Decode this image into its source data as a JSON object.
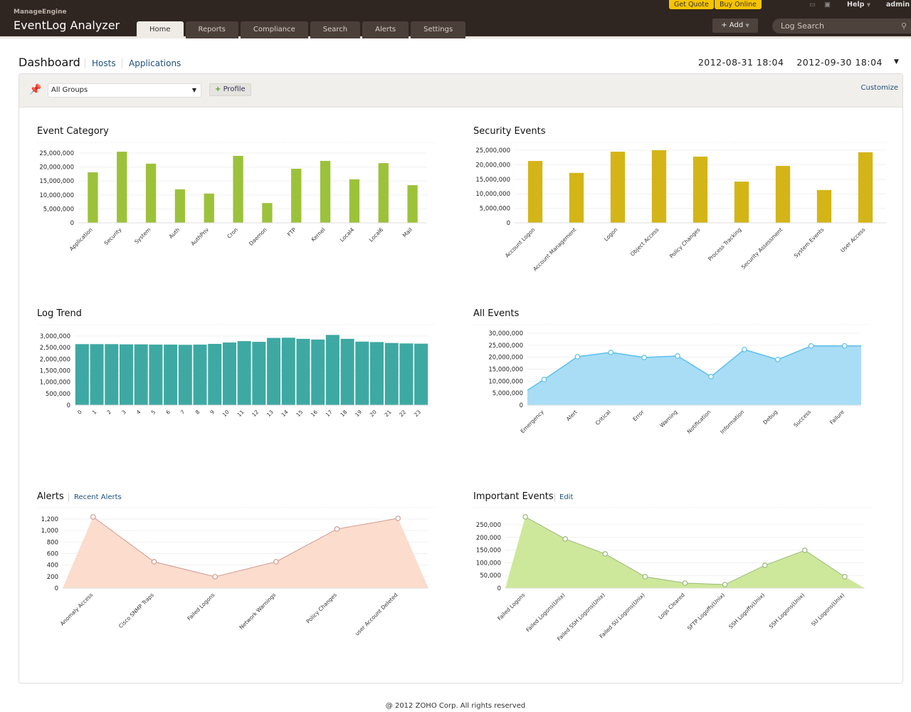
{
  "header": {
    "brand_small": "ManageEngine",
    "brand_product": "EventLog Analyzer",
    "tabs": [
      "Home",
      "Reports",
      "Compliance",
      "Search",
      "Alerts",
      "Settings"
    ],
    "active_tab": "Home",
    "get_quote": "Get Quote",
    "buy_online": "Buy Online",
    "help": "Help",
    "user": "admin",
    "add": "+ Add",
    "log_search": "Log Search"
  },
  "page": {
    "title": "Dashboard",
    "links": [
      "Hosts",
      "Applications"
    ],
    "date_from": "2012-08-31 18:04",
    "date_to": "2012-09-30 18:04"
  },
  "toolbar": {
    "group": "All Groups",
    "profile": "Profile",
    "customize": "Customize"
  },
  "alerts_link": "Recent Alerts",
  "important_link": "Edit",
  "footer": "@ 2012 ZOHO Corp. All rights reserved",
  "chart_data": [
    {
      "id": "event-category",
      "type": "bar",
      "title": "Event Category",
      "color": "#9cc23a",
      "categories": [
        "Application",
        "Security",
        "System",
        "Auth",
        "AuthPriv",
        "Cron",
        "Daemon",
        "FTP",
        "Kernel",
        "Local4",
        "Local6",
        "Mail"
      ],
      "values": [
        18100000,
        25500000,
        21200000,
        12000000,
        10500000,
        24000000,
        7100000,
        19400000,
        22200000,
        15600000,
        21400000,
        13500000
      ],
      "yticks": [
        0,
        5000000,
        10000000,
        15000000,
        20000000,
        25000000
      ],
      "ylim": [
        0,
        25000000
      ]
    },
    {
      "id": "security-events",
      "type": "bar",
      "title": "Security Events",
      "color": "#d4b517",
      "categories": [
        "Account Logon",
        "Account Management",
        "Logon",
        "Object Access",
        "Policy Changes",
        "Process Tracking",
        "Security Assessment",
        "System Events",
        "User Access"
      ],
      "values": [
        21300000,
        17200000,
        24500000,
        25000000,
        22800000,
        14200000,
        19600000,
        11300000,
        24300000
      ],
      "yticks": [
        0,
        5000000,
        10000000,
        15000000,
        20000000,
        25000000
      ],
      "ylim": [
        0,
        25000000
      ]
    },
    {
      "id": "log-trend",
      "type": "bar",
      "title": "Log Trend",
      "color": "#3ea9a2",
      "categories": [
        "0",
        "1",
        "2",
        "3",
        "4",
        "5",
        "6",
        "7",
        "8",
        "9",
        "10",
        "11",
        "12",
        "13",
        "14",
        "15",
        "16",
        "17",
        "18",
        "19",
        "20",
        "21",
        "22",
        "23"
      ],
      "values": [
        2650000,
        2650000,
        2650000,
        2640000,
        2640000,
        2630000,
        2630000,
        2620000,
        2630000,
        2660000,
        2720000,
        2780000,
        2750000,
        2920000,
        2930000,
        2880000,
        2850000,
        3050000,
        2880000,
        2760000,
        2740000,
        2700000,
        2680000,
        2670000
      ],
      "yticks": [
        0,
        500000,
        1000000,
        1500000,
        2000000,
        2500000,
        3000000
      ],
      "ylim": [
        0,
        3000000
      ]
    },
    {
      "id": "all-events",
      "type": "area",
      "title": "All Events",
      "color": "#5bc0eb",
      "fill": "#a9ddf6",
      "categories": [
        "Emergency",
        "Alert",
        "Critical",
        "Error",
        "Warning",
        "Notification",
        "Information",
        "Debug",
        "Success",
        "Failure"
      ],
      "values": [
        10700000,
        20200000,
        22000000,
        19900000,
        20500000,
        11900000,
        23200000,
        19000000,
        24700000,
        24700000
      ],
      "yticks": [
        0,
        5000000,
        10000000,
        15000000,
        20000000,
        25000000,
        30000000
      ],
      "ylim": [
        0,
        30000000
      ]
    },
    {
      "id": "alerts",
      "type": "area",
      "title": "Alerts",
      "color": "#d09a90",
      "fill": "#fbdccd",
      "categories": [
        "Anomaly Access",
        "Cisco SNMP Traps",
        "Failed Logons",
        "Network Warnings",
        "Policy Changes",
        "user Account Deleted"
      ],
      "values": [
        1237,
        458,
        198,
        458,
        1027,
        1212
      ],
      "yticks": [
        0,
        200,
        400,
        600,
        800,
        1000,
        1200
      ],
      "ylim": [
        0,
        1200
      ]
    },
    {
      "id": "important-events",
      "type": "area",
      "title": "Important Events",
      "color": "#9cb87a",
      "fill": "#cde89a",
      "categories": [
        "Failed Logons",
        "Failed Logons(Unix)",
        "Failed SSH Logons(Unix)",
        "Failed SU Logons(Unix)",
        "Logs Cleared",
        "SFTP Logoffs(Unix)",
        "SSH Logoffs(Unix)",
        "SSH Logons(Unix)",
        "SU Logons(Unix)"
      ],
      "values": [
        281000,
        194000,
        135000,
        45000,
        20000,
        14000,
        90000,
        149000,
        45000
      ],
      "yticks": [
        0,
        50000,
        100000,
        150000,
        200000,
        250000
      ],
      "ylim": [
        0,
        250000
      ]
    }
  ]
}
